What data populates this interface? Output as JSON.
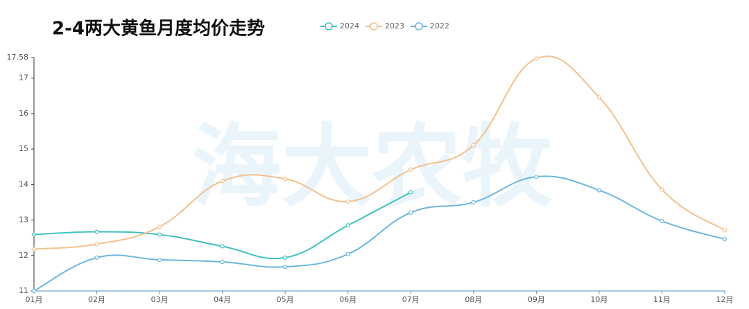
{
  "chart_data": {
    "type": "line",
    "title": "2-4两大黄鱼月度均价走势",
    "watermark": "海大农牧",
    "categories": [
      "01月",
      "02月",
      "03月",
      "04月",
      "05月",
      "06月",
      "07月",
      "08月",
      "09月",
      "10月",
      "11月",
      "12月"
    ],
    "series": [
      {
        "name": "2024",
        "color": "#3fc1c0",
        "values": [
          12.59,
          12.67,
          12.59,
          12.26,
          11.94,
          12.85,
          13.78,
          null,
          null,
          null,
          null,
          null
        ]
      },
      {
        "name": "2023",
        "color": "#f3c08c",
        "values": [
          12.18,
          12.32,
          12.81,
          14.1,
          14.16,
          13.52,
          14.42,
          15.11,
          17.55,
          16.46,
          13.86,
          12.71
        ]
      },
      {
        "name": "2022",
        "color": "#6cb6e2",
        "values": [
          11.0,
          11.94,
          11.88,
          11.82,
          11.68,
          12.04,
          13.21,
          13.5,
          14.22,
          13.84,
          12.97,
          12.46
        ]
      }
    ],
    "ylim": [
      11,
      17.58
    ],
    "yticks": [
      11,
      12,
      13,
      14,
      15,
      16,
      17,
      17.58
    ]
  }
}
